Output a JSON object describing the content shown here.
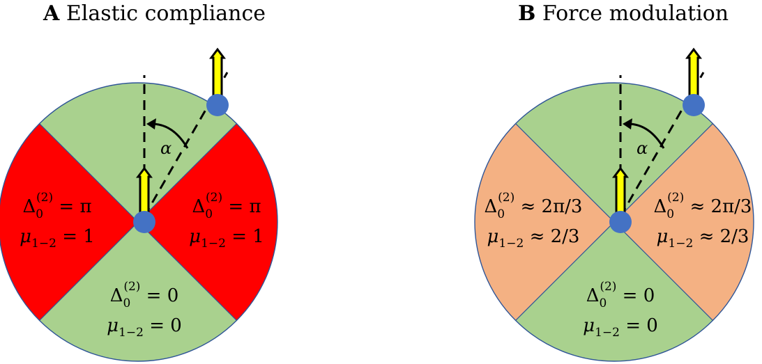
{
  "panels": [
    {
      "letter": "A",
      "title": "Elastic compliance",
      "sector_colors": {
        "upper_lower": "#a9d18e",
        "left_right": "#ff0000"
      },
      "angle_label": "α",
      "left_label": {
        "delta": "Δ",
        "sub": "0",
        "sup": "(2)",
        "rel": "= π",
        "mu": "μ",
        "mu_sub": "1−2",
        "mu_rel": "= 1"
      },
      "right_label": {
        "delta": "Δ",
        "sub": "0",
        "sup": "(2)",
        "rel": "= π",
        "mu": "μ",
        "mu_sub": "1−2",
        "mu_rel": "= 1"
      },
      "bottom_label": {
        "delta": "Δ",
        "sub": "0",
        "sup": "(2)",
        "rel": "= 0",
        "mu": "μ",
        "mu_sub": "1−2",
        "mu_rel": "= 0"
      }
    },
    {
      "letter": "B",
      "title": "Force modulation",
      "sector_colors": {
        "upper_lower": "#a9d18e",
        "left_right": "#f4b183"
      },
      "angle_label": "α",
      "left_label": {
        "delta": "Δ",
        "sub": "0",
        "sup": "(2)",
        "rel": "≈ 2π/3",
        "mu": "μ",
        "mu_sub": "1−2",
        "mu_rel": "≈ 2/3"
      },
      "right_label": {
        "delta": "Δ",
        "sub": "0",
        "sup": "(2)",
        "rel": "≈ 2π/3",
        "mu": "μ",
        "mu_sub": "1−2",
        "mu_rel": "≈ 2/3"
      },
      "bottom_label": {
        "delta": "Δ",
        "sub": "0",
        "sup": "(2)",
        "rel": "= 0",
        "mu": "μ",
        "mu_sub": "1−2",
        "mu_rel": "= 0"
      }
    }
  ],
  "colors": {
    "node": "#4472c4",
    "arrow_fill": "#ffff00",
    "circle_edge": "#2f5597"
  }
}
